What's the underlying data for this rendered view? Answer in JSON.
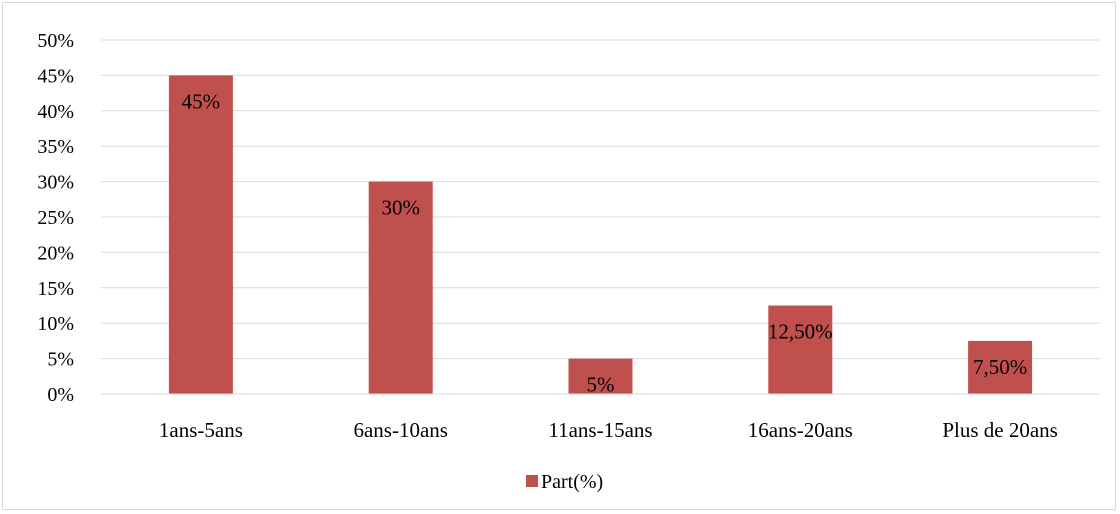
{
  "chart_data": {
    "type": "bar",
    "categories": [
      "1ans-5ans",
      "6ans-10ans",
      "11ans-15ans",
      "16ans-20ans",
      "Plus de 20ans"
    ],
    "series": [
      {
        "name": "Part(%)",
        "values": [
          45,
          30,
          5,
          12.5,
          7.5
        ],
        "data_labels": [
          "45%",
          "30%",
          "5%",
          "12,50%",
          "7,50%"
        ],
        "color": "#c0504d"
      }
    ],
    "ylim": [
      0,
      50
    ],
    "yticks": [
      0,
      5,
      10,
      15,
      20,
      25,
      30,
      35,
      40,
      45,
      50
    ],
    "ytick_labels": [
      "0%",
      "5%",
      "10%",
      "15%",
      "20%",
      "25%",
      "30%",
      "35%",
      "40%",
      "45%",
      "50%"
    ],
    "grid": true,
    "gridline_color": "#d9d9d9",
    "legend_position": "bottom"
  }
}
